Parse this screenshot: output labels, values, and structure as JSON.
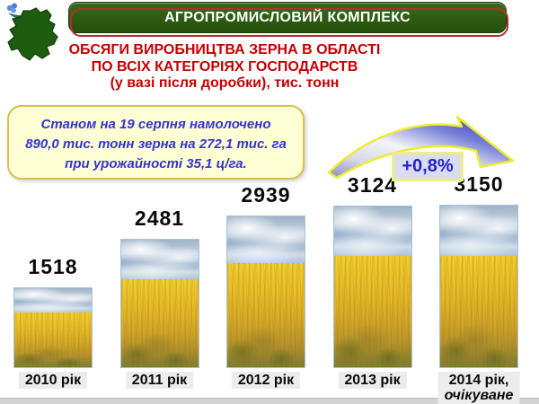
{
  "slide": {
    "header": "АГРОПРОМИСЛОВИЙ КОМПЛЕКС",
    "title_lines": {
      "0": "ОБСЯГИ ВИРОБНИЦТВА ЗЕРНА В ОБЛАСТІ",
      "1": "ПО ВСІХ КАТЕГОРІЯХ ГОСПОДАРСТВ",
      "2": "(у вазі після доробки), тис. тонн"
    },
    "note_lines": {
      "0": "Станом на 19 серпня намолочено",
      "1": "890,0 тис. тонн зерна на 272,1 тис. га",
      "2": "при урожайності 35,1 ц/га."
    },
    "growth_badge": "+0,8%"
  },
  "chart_data": {
    "type": "bar",
    "title": "ОБСЯГИ ВИРОБНИЦТВА ЗЕРНА В ОБЛАСТІ ПО ВСІХ КАТЕГОРІЯХ ГОСПОДАРСТВ (у вазі після доробки), тис. тонн",
    "unit": "тис. тонн",
    "categories": [
      "2010 рік",
      "2011 рік",
      "2012 рік",
      "2013 рік",
      "2014 рік, очікуване"
    ],
    "category_lines": [
      [
        "2010 рік"
      ],
      [
        "2011 рік"
      ],
      [
        "2012 рік"
      ],
      [
        "2013 рік"
      ],
      [
        "2014 рік,",
        "очікуване"
      ]
    ],
    "values": [
      1518,
      2481,
      2939,
      3124,
      3150
    ],
    "value_labels_shown": true,
    "annotation": "+0,8%",
    "bar_style": "wheat-field-photo",
    "ylim": [
      0,
      3150
    ],
    "grid": false,
    "legend_position": "none"
  },
  "colors": {
    "header_green": "#2c5a10",
    "header_outline_red": "#b03030",
    "title_red": "#c40000",
    "note_bg": "#ffffd6",
    "note_border": "#d9c050",
    "note_text_blue": "#3434cf",
    "badge_bg": "#dadcf0",
    "badge_border_yellow": "#eeee88",
    "badge_text_blue": "#2222cc",
    "arrow_blue": "#2030b8",
    "arrow_outline_yellow": "#ecec30",
    "year_label_bg": "#ececec",
    "map_green": "#1e5c10"
  }
}
